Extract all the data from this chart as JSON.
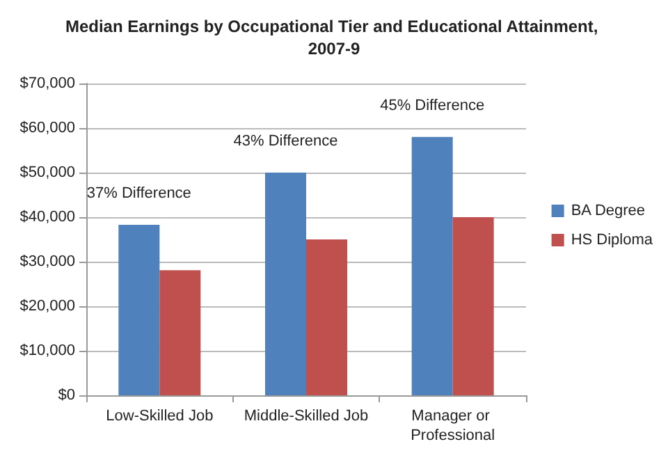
{
  "chart_data": {
    "type": "bar",
    "title": "Median Earnings by Occupational Tier and Educational Attainment, 2007-9",
    "categories": [
      "Low-Skilled Job",
      "Middle-Skilled Job",
      "Manager or Professional"
    ],
    "series": [
      {
        "name": "BA Degree",
        "color": "#4f81bd",
        "values": [
          38300,
          50000,
          58000
        ]
      },
      {
        "name": "HS Diploma",
        "color": "#c0504d",
        "values": [
          28100,
          35000,
          40000
        ]
      }
    ],
    "ylim": [
      0,
      70000
    ],
    "yticks": [
      {
        "value": 0,
        "label": "$0"
      },
      {
        "value": 10000,
        "label": "$10,000"
      },
      {
        "value": 20000,
        "label": "$20,000"
      },
      {
        "value": 30000,
        "label": "$30,000"
      },
      {
        "value": 40000,
        "label": "$40,000"
      },
      {
        "value": 50000,
        "label": "$50,000"
      },
      {
        "value": 60000,
        "label": "$60,000"
      },
      {
        "value": 70000,
        "label": "$70,000"
      }
    ],
    "grid": "y",
    "legend": "right",
    "annotations": [
      "37% Difference",
      "43% Difference",
      "45% Difference"
    ]
  }
}
